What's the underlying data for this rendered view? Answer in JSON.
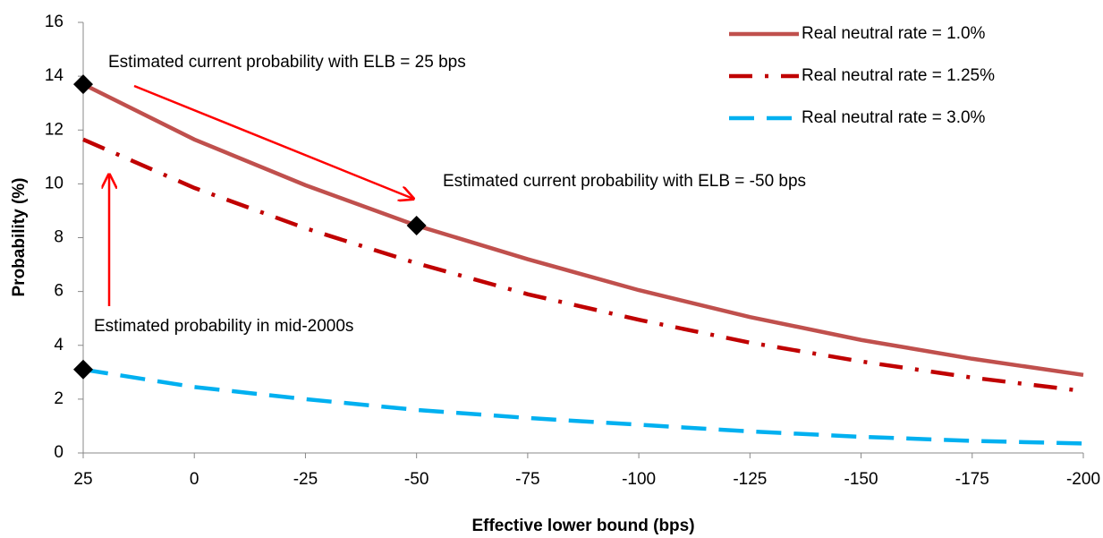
{
  "chart_data": {
    "type": "line",
    "x_label": "Effective lower bound (bps)",
    "y_label": "Probability (%)",
    "x": [
      25,
      0,
      -25,
      -50,
      -75,
      -100,
      -125,
      -150,
      -175,
      -200
    ],
    "series": [
      {
        "name": "Real neutral rate = 1.0%",
        "color": "#c0504d",
        "dash": "solid",
        "values": [
          13.7,
          11.65,
          9.95,
          8.45,
          7.2,
          6.05,
          5.05,
          4.2,
          3.5,
          2.9
        ]
      },
      {
        "name": "Real neutral rate = 1.25%",
        "color": "#c00000",
        "dash": "dashdot",
        "values": [
          11.65,
          9.85,
          8.35,
          7.05,
          5.9,
          4.95,
          4.1,
          3.4,
          2.8,
          2.3
        ]
      },
      {
        "name": "Real neutral rate = 3.0%",
        "color": "#00b0f0",
        "dash": "dash",
        "values": [
          3.1,
          2.45,
          2.0,
          1.6,
          1.3,
          1.05,
          0.8,
          0.6,
          0.45,
          0.35
        ]
      }
    ],
    "markers": {
      "x": [
        25,
        -50,
        25
      ],
      "y": [
        13.7,
        8.45,
        3.1
      ]
    },
    "annotations": [
      "Estimated current probability with ELB = 25 bps",
      "Estimated current probability with ELB = -50 bps",
      "Estimated probability in mid-2000s"
    ],
    "xlim": [
      25,
      -200
    ],
    "xticks": [
      25,
      0,
      -25,
      -50,
      -75,
      -100,
      -125,
      -150,
      -175,
      -200
    ],
    "ylim": [
      0,
      16
    ],
    "yticks": [
      0,
      2,
      4,
      6,
      8,
      10,
      12,
      14,
      16
    ],
    "grid": false,
    "legend": "top-right"
  }
}
